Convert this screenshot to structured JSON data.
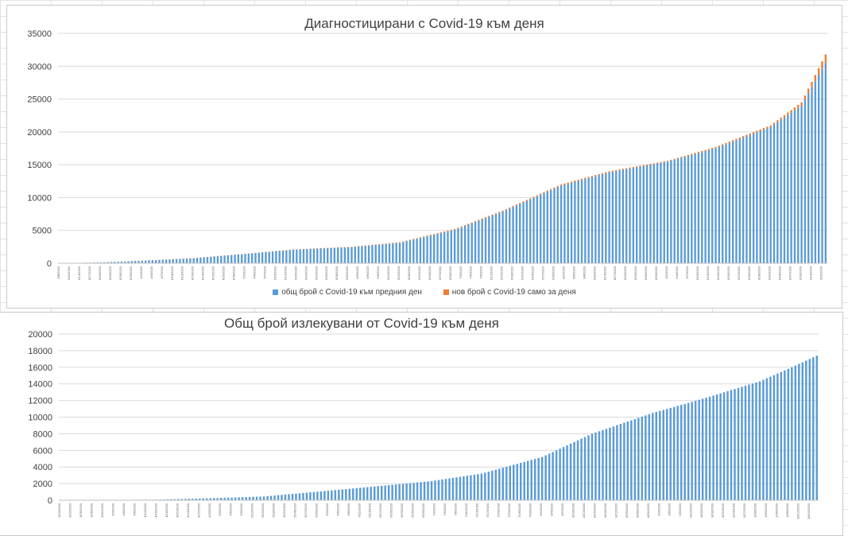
{
  "chart_data": [
    {
      "type": "bar",
      "stacked": true,
      "title": "Диагностицирани с Covid-19 към деня",
      "ylim": [
        0,
        35000
      ],
      "yticks": [
        0,
        5000,
        10000,
        15000,
        20000,
        25000,
        30000,
        35000
      ],
      "grid": true,
      "legend": "bottom",
      "date_start": "2020-03-08",
      "date_end": "2020-10-17",
      "series": [
        {
          "name": "общ брой с Covid-19 към предния ден",
          "color": "#5b9bd5"
        },
        {
          "name": "нов брой с Covid-19 само за деня",
          "color": "#ed7d31"
        }
      ],
      "cumulative_total_checkpoints": [
        [
          "2020-03-08",
          4
        ],
        [
          "2020-03-20",
          130
        ],
        [
          "2020-04-01",
          400
        ],
        [
          "2020-04-15",
          750
        ],
        [
          "2020-05-01",
          1450
        ],
        [
          "2020-05-15",
          2100
        ],
        [
          "2020-06-01",
          2500
        ],
        [
          "2020-06-15",
          3200
        ],
        [
          "2020-07-01",
          5200
        ],
        [
          "2020-07-15",
          8000
        ],
        [
          "2020-08-01",
          12000
        ],
        [
          "2020-08-15",
          14000
        ],
        [
          "2020-09-01",
          15600
        ],
        [
          "2020-09-15",
          17700
        ],
        [
          "2020-10-01",
          21000
        ],
        [
          "2020-10-10",
          24500
        ],
        [
          "2020-10-17",
          31800
        ]
      ],
      "daily_new_checkpoints": [
        [
          "2020-03-08",
          1
        ],
        [
          "2020-04-15",
          30
        ],
        [
          "2020-06-01",
          50
        ],
        [
          "2020-07-01",
          120
        ],
        [
          "2020-08-01",
          170
        ],
        [
          "2020-09-01",
          120
        ],
        [
          "2020-10-01",
          250
        ],
        [
          "2020-10-10",
          500
        ],
        [
          "2020-10-17",
          1300
        ]
      ]
    },
    {
      "type": "bar",
      "title": "Общ брой излекувани от Covid-19 към деня",
      "ylim": [
        0,
        20000
      ],
      "yticks": [
        0,
        2000,
        4000,
        6000,
        8000,
        10000,
        12000,
        14000,
        16000,
        18000,
        20000
      ],
      "grid": true,
      "date_start": "2020-03-19",
      "date_end": "2020-10-17",
      "series": [
        {
          "name": "",
          "color": "#5b9bd5"
        }
      ],
      "cumulative_total_checkpoints": [
        [
          "2020-03-19",
          0
        ],
        [
          "2020-04-15",
          70
        ],
        [
          "2020-05-01",
          250
        ],
        [
          "2020-05-15",
          450
        ],
        [
          "2020-06-01",
          1100
        ],
        [
          "2020-06-15",
          1650
        ],
        [
          "2020-07-01",
          2300
        ],
        [
          "2020-07-15",
          3200
        ],
        [
          "2020-08-01",
          5200
        ],
        [
          "2020-08-15",
          8000
        ],
        [
          "2020-09-01",
          10500
        ],
        [
          "2020-09-15",
          12200
        ],
        [
          "2020-10-01",
          14300
        ],
        [
          "2020-10-10",
          16000
        ],
        [
          "2020-10-17",
          17400
        ]
      ]
    }
  ]
}
